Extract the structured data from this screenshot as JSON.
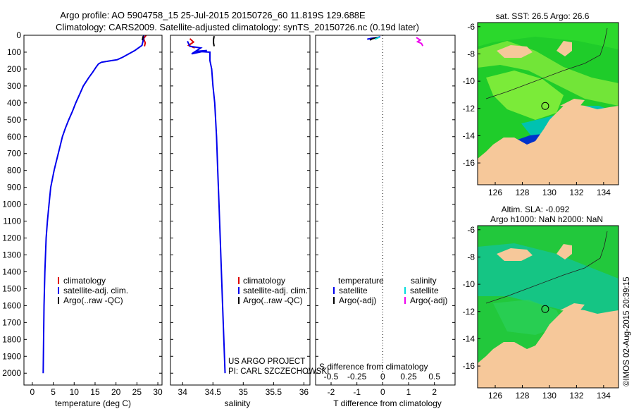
{
  "title_line1": "Argo profile: AO 5904758_15 25-Jul-2015 20150726_60 11.819S 129.688E",
  "title_line2": "Climatology: CARS2009. Satellite-adjusted climatology: synTS_20150726.nc (0.19d later)",
  "footer_credit": "©IMOS 02-Aug-2015 20:39:15",
  "colors": {
    "climatology": "#dd0000",
    "satellite": "#0000ee",
    "argo": "#000000",
    "sal_satellite": "#00dddd",
    "sal_argo": "#ee00ee",
    "land": "#f6c89a",
    "ocean_green": "#22cc33",
    "ocean_cyan": "#00c8aa",
    "ocean_light": "#99ff33",
    "ocean_blue": "#0033dd"
  },
  "chart_data": [
    {
      "type": "line",
      "id": "temperature",
      "title": "",
      "xlabel": "temperature (deg C)",
      "ylabel": "",
      "xlim": [
        -2,
        31
      ],
      "ylim": [
        0,
        2070
      ],
      "xticks": [
        0,
        5,
        10,
        15,
        20,
        25,
        30
      ],
      "yticks": [
        0,
        100,
        200,
        300,
        400,
        500,
        600,
        700,
        800,
        900,
        1000,
        1100,
        1200,
        1300,
        1400,
        1500,
        1600,
        1700,
        1800,
        1900,
        2000
      ],
      "legend": [
        "climatology",
        "satellite-adj. clim.",
        "Argo(..raw -QC)"
      ],
      "series": [
        {
          "name": "climatology",
          "x": [
            27.2,
            26.6,
            27.0,
            26.8
          ],
          "y": [
            0,
            20,
            45,
            65
          ]
        },
        {
          "name": "satellite-adj. clim.",
          "x": [
            26.6,
            26.5,
            26.2,
            24.5,
            21.6,
            20.3,
            19.0,
            17.7,
            16.5,
            15.8,
            15.2,
            14.4,
            13.5,
            12.2,
            11.3,
            10.4,
            9.6,
            8.7,
            7.9,
            7.2,
            6.7,
            6.2,
            5.7,
            5.2,
            4.8,
            4.4,
            4.0,
            3.6,
            3.3,
            3.0,
            2.8,
            2.6
          ],
          "y": [
            0,
            30,
            60,
            90,
            130,
            145,
            150,
            155,
            160,
            170,
            190,
            220,
            250,
            300,
            350,
            400,
            450,
            500,
            550,
            600,
            650,
            700,
            750,
            800,
            850,
            900,
            1000,
            1100,
            1200,
            1400,
            1600,
            2000
          ]
        },
        {
          "name": "Argo(..raw -QC)",
          "x": [
            26.5,
            26.4,
            26.3
          ],
          "y": [
            5,
            15,
            30
          ]
        }
      ]
    },
    {
      "type": "line",
      "id": "salinity",
      "xlabel": "salinity",
      "xlim": [
        33.8,
        36.1
      ],
      "ylim": [
        0,
        2070
      ],
      "xticks": [
        34,
        34.5,
        35,
        35.5,
        36
      ],
      "xtick_labels": [
        "34",
        "34.5",
        "35",
        "35.5",
        "36"
      ],
      "legend": [
        "climatology",
        "satellite-adj. clim.",
        "Argo(..raw -QC)"
      ],
      "annotation": [
        "US ARGO PROJECT",
        "PI: CARL SZCZECHOWSKI"
      ],
      "series": [
        {
          "name": "climatology",
          "x": [
            34.12,
            34.18,
            34.1,
            34.2
          ],
          "y": [
            20,
            40,
            60,
            75
          ]
        },
        {
          "name": "satellite-adj. clim.",
          "x": [
            34.08,
            34.12,
            34.3,
            34.15,
            34.4,
            34.22,
            34.45,
            34.45,
            34.48,
            34.5,
            34.53,
            34.56,
            34.58,
            34.6,
            34.62,
            34.64,
            34.66,
            34.7
          ],
          "y": [
            35,
            65,
            75,
            110,
            90,
            95,
            100,
            150,
            200,
            300,
            400,
            600,
            800,
            1000,
            1200,
            1400,
            1600,
            2000
          ]
        },
        {
          "name": "Argo(..raw -QC)",
          "x": [
            34.52,
            34.51,
            34.51,
            34.52
          ],
          "y": [
            5,
            25,
            45,
            65
          ]
        }
      ]
    },
    {
      "type": "line",
      "id": "difference",
      "xlabel_top": "S difference from climatology",
      "xlabel": "T difference from climatology",
      "xlim": [
        -2.6,
        2.8
      ],
      "ylim": [
        0,
        2070
      ],
      "xticks_t": [
        -2,
        -1,
        0,
        1,
        2
      ],
      "xticks_s": [
        -0.5,
        -0.25,
        0,
        0.25,
        0.5
      ],
      "xtick_labels_s": [
        "-0.5",
        "-0.25",
        "0",
        "0.25",
        "0.5"
      ],
      "legend_t_title": "temperature",
      "legend_s_title": "salinity",
      "legend_t": [
        "satellite",
        "Argo(-adj)"
      ],
      "legend_s": [
        "satellite",
        "Argo(-adj)"
      ],
      "series": [
        {
          "name": "T satellite",
          "x": [
            -0.1,
            -0.2,
            -0.45,
            -0.6
          ],
          "y": [
            0,
            5,
            10,
            15
          ]
        },
        {
          "name": "T Argo(-adj)",
          "x": [
            -0.2,
            -0.4,
            -0.5
          ],
          "y": [
            5,
            12,
            20
          ]
        },
        {
          "name": "S satellite",
          "x": [
            -0.12,
            -0.2,
            -0.3
          ],
          "y": [
            2,
            8,
            15
          ]
        },
        {
          "name": "S Argo(-adj)",
          "x": [
            1.3,
            1.45,
            1.35,
            1.5,
            1.55
          ],
          "y": [
            5,
            20,
            30,
            40,
            55
          ]
        }
      ]
    },
    {
      "type": "heatmap",
      "id": "sst_map",
      "title": "sat. SST: 26.5 Argo: 26.6",
      "xlim": [
        124.7,
        135.1
      ],
      "ylim": [
        -17.6,
        -5.7
      ],
      "xticks": [
        126,
        128,
        130,
        132,
        134
      ],
      "yticks": [
        -6,
        -8,
        -10,
        -12,
        -14,
        -16
      ],
      "marker": {
        "lon": 129.688,
        "lat": -11.819
      }
    },
    {
      "type": "heatmap",
      "id": "sla_map",
      "title": "Altim. SLA: -0.092",
      "subtitle": "Argo h1000: NaN h2000: NaN",
      "xlim": [
        124.7,
        135.1
      ],
      "ylim": [
        -17.6,
        -5.7
      ],
      "xticks": [
        126,
        128,
        130,
        132,
        134
      ],
      "yticks": [
        -6,
        -8,
        -10,
        -12,
        -14,
        -16
      ],
      "marker": {
        "lon": 129.688,
        "lat": -11.819
      }
    }
  ]
}
